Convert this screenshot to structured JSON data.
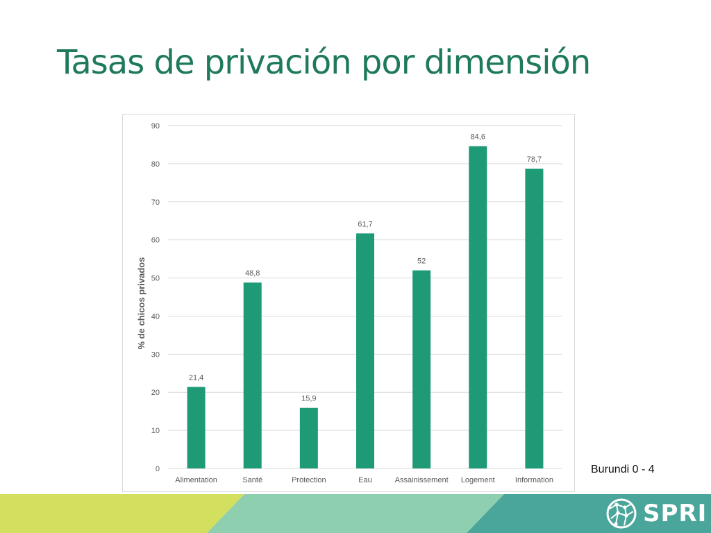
{
  "slide": {
    "title": "Tasas de privación por dimensión",
    "subtitle": "Burundi 0 - 4",
    "brand": "SPRI"
  },
  "colors": {
    "title": "#1f7a5c",
    "bar": "#1f9a77",
    "footer_yellow": "#d2df5f",
    "footer_mint": "#8ecfb0",
    "footer_teal": "#4aa59a"
  },
  "chart_data": {
    "type": "bar",
    "title": "",
    "xlabel": "",
    "ylabel": "% de chicos privados",
    "ylim": [
      0,
      90
    ],
    "yticks": [
      0,
      10,
      20,
      30,
      40,
      50,
      60,
      70,
      80,
      90
    ],
    "grid": true,
    "categories": [
      "Alimentation",
      "Santé",
      "Protection",
      "Eau",
      "Assainissement",
      "Logement",
      "Information"
    ],
    "values": [
      21.4,
      48.8,
      15.9,
      61.7,
      52,
      84.6,
      78.7
    ],
    "data_labels": [
      "21,4",
      "48,8",
      "15,9",
      "61,7",
      "52",
      "84,6",
      "78,7"
    ]
  }
}
